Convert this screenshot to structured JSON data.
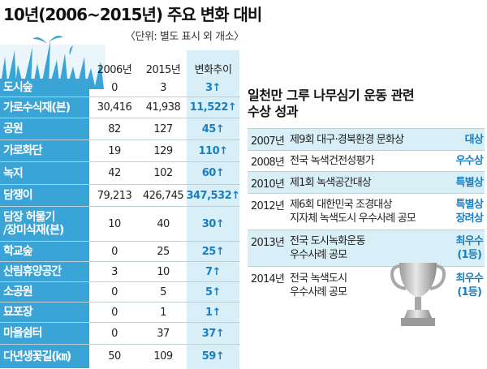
{
  "title": "10년(2006~2015년) 주요 변화 대비",
  "unit_note": "〈단위: 별도 표시 외 개소〉",
  "columns": {
    "y2006": "2006년",
    "y2015": "2015년",
    "trend": "변화추이"
  },
  "rows": [
    {
      "label": "도시숲",
      "v2006": "0",
      "v2015": "3",
      "trend": "3↑"
    },
    {
      "label": "가로수식재(본)",
      "v2006": "30,416",
      "v2015": "41,938",
      "trend": "11,522↑"
    },
    {
      "label": "공원",
      "v2006": "82",
      "v2015": "127",
      "trend": "45↑"
    },
    {
      "label": "가로화단",
      "v2006": "19",
      "v2015": "129",
      "trend": "110↑"
    },
    {
      "label": "녹지",
      "v2006": "42",
      "v2015": "102",
      "trend": "60↑"
    },
    {
      "label": "담쟁이",
      "v2006": "79,213",
      "v2015": "426,745",
      "trend": "347,532↑"
    },
    {
      "label": "담장 허물기/장미식재(본)",
      "label_line1": "담장 허물기",
      "label_line2": "/장미식재(본)",
      "v2006": "10",
      "v2015": "40",
      "trend": "30↑"
    },
    {
      "label": "학교숲",
      "v2006": "0",
      "v2015": "25",
      "trend": "25↑"
    },
    {
      "label": "산림휴양공간",
      "v2006": "3",
      "v2015": "10",
      "trend": "7↑"
    },
    {
      "label": "소공원",
      "v2006": "0",
      "v2015": "5",
      "trend": "5↑"
    },
    {
      "label": "묘포장",
      "v2006": "0",
      "v2015": "1",
      "trend": "1↑"
    },
    {
      "label": "마을쉼터",
      "v2006": "0",
      "v2015": "37",
      "trend": "37↑"
    },
    {
      "label": "다년생꽃길(㎞)",
      "v2006": "50",
      "v2015": "109",
      "trend": "59↑"
    }
  ],
  "side": {
    "title_line1": "일천만 그루 나무심기 운동 관련",
    "title_line2": "수상 성과",
    "awards": [
      {
        "year": "2007년",
        "award": [
          "제9회 대구·경북환경 문화상"
        ],
        "result": [
          "대상"
        ]
      },
      {
        "year": "2008년",
        "award": [
          "전국 녹색건전성평가"
        ],
        "result": [
          "우수상"
        ]
      },
      {
        "year": "2010년",
        "award": [
          "제1회 녹색공간대상"
        ],
        "result": [
          "특별상"
        ]
      },
      {
        "year": "2012년",
        "award": [
          "제6회 대한민국 조경대상",
          "지자체 녹색도시 우수사례 공모"
        ],
        "result": [
          "특별상",
          "장려상"
        ]
      },
      {
        "year": "2013년",
        "award": [
          "전국 도시녹화운동",
          "우수사례 공모"
        ],
        "result": [
          "최우수",
          "(1등)"
        ]
      },
      {
        "year": "2014년",
        "award": [
          "전국 녹색도시",
          "우수사례 공모"
        ],
        "result": [
          "최우수",
          "(1등)"
        ]
      }
    ]
  },
  "colors": {
    "label_bg": "#3ba4d6",
    "trend_bg": "#d9eff7",
    "accent": "#1a7ec1",
    "trophy": "#c8c8c8"
  },
  "icons": {
    "decoration": "grass-icon",
    "trophy": "trophy-icon"
  }
}
